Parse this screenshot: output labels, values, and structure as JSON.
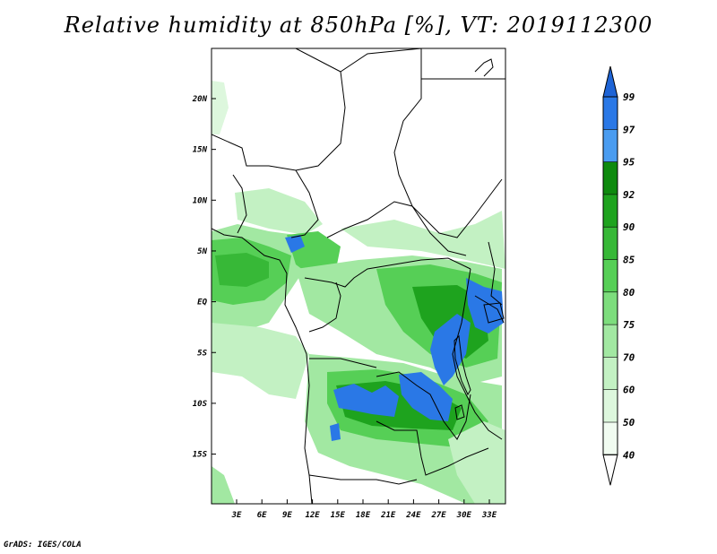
{
  "title": "Relative humidity at 850hPa [%], VT: 2019112300",
  "credit": "GrADS: IGES/COLA",
  "map": {
    "lon_range": [
      0,
      35
    ],
    "lat_range": [
      -20,
      25
    ],
    "lat_ticks": [
      "20N",
      "15N",
      "10N",
      "5N",
      "EQ",
      "5S",
      "10S",
      "15S"
    ],
    "lon_ticks": [
      "3E",
      "6E",
      "9E",
      "12E",
      "15E",
      "18E",
      "21E",
      "24E",
      "27E",
      "30E",
      "33E"
    ]
  },
  "colorbar": {
    "levels": [
      "99",
      "97",
      "95",
      "92",
      "90",
      "85",
      "80",
      "75",
      "70",
      "60",
      "50",
      "40"
    ],
    "colors": [
      "#1e64d6",
      "#2a78e6",
      "#4a9cf0",
      "#0e8a0e",
      "#1ea31e",
      "#37b837",
      "#56cf56",
      "#7ddd7d",
      "#a2e8a2",
      "#c3f1c3",
      "#ddf7dd",
      "#f1fcf1",
      "#ffffff"
    ]
  }
}
